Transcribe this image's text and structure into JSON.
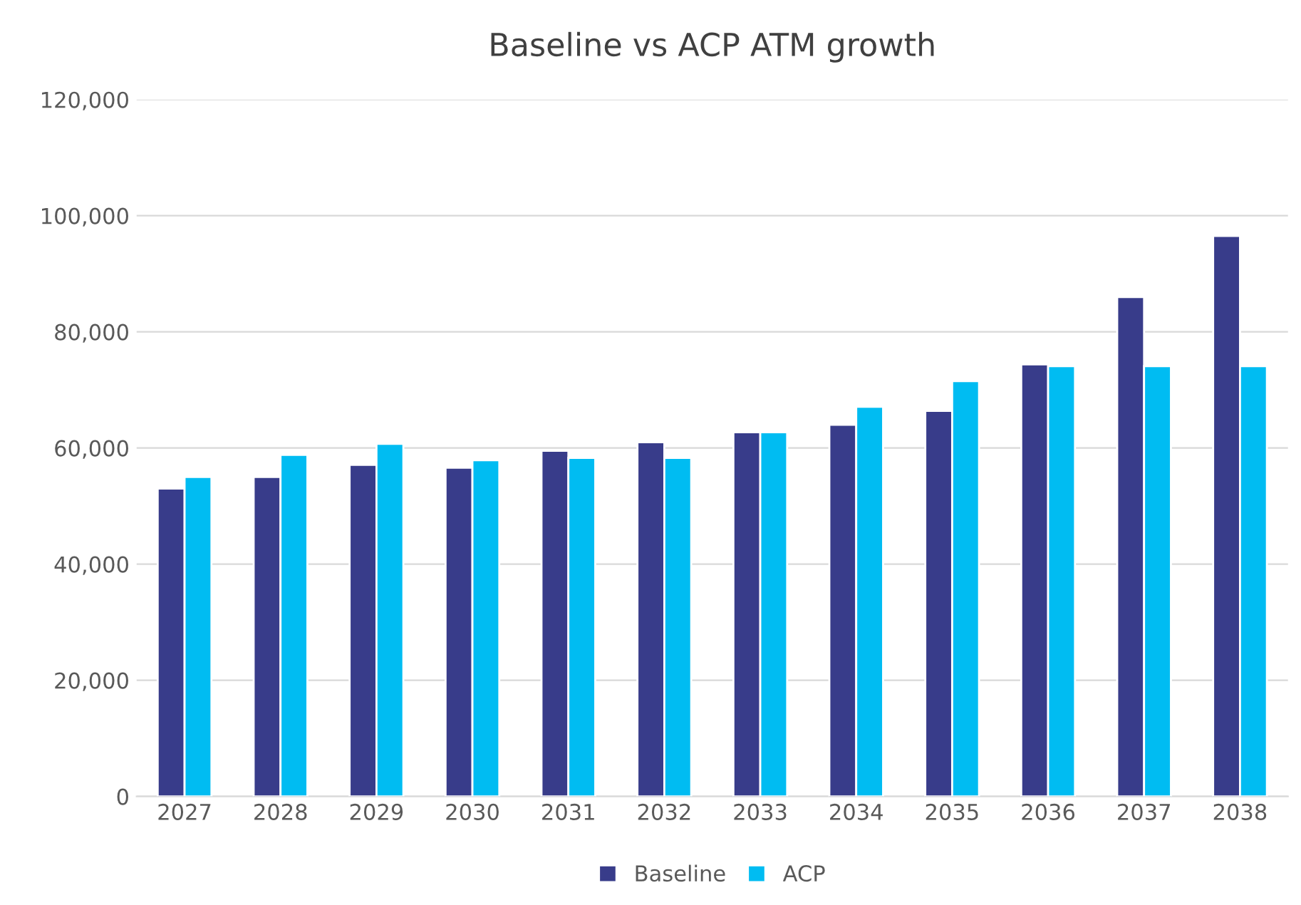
{
  "chart_data": {
    "type": "bar",
    "title": "Baseline vs ACP ATM growth",
    "categories": [
      "2027",
      "2028",
      "2029",
      "2030",
      "2031",
      "2032",
      "2033",
      "2034",
      "2035",
      "2036",
      "2037",
      "2038"
    ],
    "series": [
      {
        "name": "Baseline",
        "color": "#383c8a",
        "values": [
          53000,
          55000,
          57100,
          56600,
          59500,
          61000,
          62700,
          64000,
          66400,
          74400,
          86000,
          96500
        ]
      },
      {
        "name": "ACP",
        "color": "#00bcf2",
        "values": [
          55000,
          58800,
          60700,
          57900,
          58300,
          58300,
          62700,
          67100,
          71500,
          74100,
          74100,
          74100
        ]
      }
    ],
    "ylim": [
      0,
      120000
    ],
    "yticks": [
      {
        "value": 0,
        "label": "0"
      },
      {
        "value": 20000,
        "label": "20,000"
      },
      {
        "value": 40000,
        "label": "40,000"
      },
      {
        "value": 60000,
        "label": "60,000"
      },
      {
        "value": 80000,
        "label": "80,000"
      },
      {
        "value": 100000,
        "label": "100,000"
      },
      {
        "value": 120000,
        "label": "120,000"
      }
    ],
    "grid": "y",
    "legend": "bottom"
  }
}
